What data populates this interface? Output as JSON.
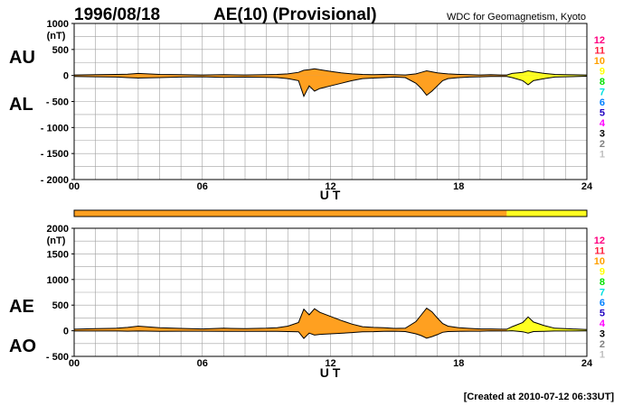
{
  "header": {
    "date": "1996/08/18",
    "title": "AE(10) (Provisional)",
    "source": "WDC for Geomagnetism, Kyoto"
  },
  "footer": {
    "created": "[Created at 2010-07-12 06:33UT]"
  },
  "colors": {
    "fill_main": "#ffa020",
    "fill_late": "#ffff20",
    "grid": "#a0a0a0",
    "stations": [
      "#c0c0c0",
      "#808080",
      "#000000",
      "#ff00ff",
      "#2000c0",
      "#0080ff",
      "#00e0e0",
      "#00e000",
      "#ffff00",
      "#ffa000",
      "#ff2040",
      "#ff0080"
    ]
  },
  "color_scale": {
    "labels": [
      "12",
      "11",
      "10",
      "9",
      "8",
      "7",
      "6",
      "5",
      "4",
      "3",
      "2",
      "1"
    ]
  },
  "status_bar": {
    "segments": [
      {
        "from": 0,
        "to": 20.25,
        "color": "#ffa020"
      },
      {
        "from": 20.25,
        "to": 24,
        "color": "#ffff20"
      }
    ]
  },
  "chart_data": [
    {
      "type": "area",
      "name": "AU/AL",
      "labels": {
        "upper": "AU",
        "lower": "AL"
      },
      "unit": "(nT)",
      "xlabel": "U T",
      "xlim": [
        0,
        24
      ],
      "ylim": [
        -2000,
        1000
      ],
      "yticks": [
        1000,
        500,
        0,
        -500,
        -1000,
        -1500,
        -2000
      ],
      "ytick_labels": [
        "1000",
        "500",
        "0",
        "- 500",
        "- 1000",
        "- 1500",
        "- 2000"
      ],
      "xtick_labels": [
        "00",
        "06",
        "12",
        "18",
        "24"
      ],
      "x": [
        0,
        1,
        2,
        2.5,
        3,
        4,
        5,
        6,
        7,
        8,
        9,
        9.5,
        10,
        10.5,
        10.75,
        11,
        11.25,
        11.5,
        12,
        12.5,
        13,
        13.5,
        14,
        14.5,
        15,
        15.5,
        16,
        16.25,
        16.5,
        16.75,
        17,
        17.25,
        17.5,
        18,
        18.5,
        19,
        19.5,
        20,
        20.25,
        20.5,
        21,
        21.25,
        21.5,
        22,
        22.5,
        23,
        24
      ],
      "series": [
        {
          "values": [
            10,
            15,
            20,
            25,
            40,
            20,
            15,
            10,
            15,
            10,
            15,
            20,
            30,
            60,
            100,
            110,
            130,
            110,
            80,
            50,
            30,
            20,
            15,
            20,
            15,
            10,
            30,
            60,
            90,
            70,
            50,
            40,
            30,
            20,
            15,
            10,
            15,
            10,
            10,
            40,
            60,
            90,
            70,
            40,
            20,
            15,
            10
          ]
        },
        {
          "values": [
            -20,
            -25,
            -30,
            -40,
            -50,
            -40,
            -30,
            -25,
            -35,
            -30,
            -35,
            -40,
            -60,
            -100,
            -400,
            -200,
            -300,
            -250,
            -200,
            -150,
            -100,
            -60,
            -50,
            -40,
            -30,
            -40,
            -150,
            -250,
            -380,
            -300,
            -200,
            -100,
            -60,
            -40,
            -30,
            -25,
            -20,
            -20,
            -20,
            -40,
            -100,
            -180,
            -100,
            -60,
            -30,
            -25,
            -15
          ]
        }
      ]
    },
    {
      "type": "area",
      "name": "AE/AO",
      "labels": {
        "upper": "AE",
        "lower": "AO"
      },
      "unit": "(nT)",
      "xlabel": "U T",
      "xlim": [
        0,
        24
      ],
      "ylim": [
        -500,
        2000
      ],
      "yticks": [
        2000,
        1500,
        1000,
        500,
        0,
        -500
      ],
      "ytick_labels": [
        "2000",
        "1500",
        "1000",
        "500",
        "0",
        "- 500"
      ],
      "xtick_labels": [
        "00",
        "06",
        "12",
        "18",
        "24"
      ],
      "x": [
        0,
        1,
        2,
        2.5,
        3,
        4,
        5,
        6,
        7,
        8,
        9,
        9.5,
        10,
        10.5,
        10.75,
        11,
        11.25,
        11.5,
        12,
        12.5,
        13,
        13.5,
        14,
        14.5,
        15,
        15.5,
        16,
        16.25,
        16.5,
        16.75,
        17,
        17.25,
        17.5,
        18,
        18.5,
        19,
        19.5,
        20,
        20.25,
        20.5,
        21,
        21.25,
        21.5,
        22,
        22.5,
        23,
        24
      ],
      "series": [
        {
          "values": [
            30,
            40,
            50,
            65,
            90,
            60,
            45,
            35,
            50,
            40,
            50,
            60,
            90,
            160,
            420,
            310,
            430,
            360,
            280,
            200,
            130,
            80,
            65,
            60,
            45,
            50,
            180,
            310,
            440,
            370,
            250,
            140,
            90,
            60,
            45,
            35,
            35,
            30,
            30,
            80,
            160,
            270,
            170,
            100,
            50,
            40,
            25
          ]
        },
        {
          "values": [
            -5,
            -5,
            -5,
            -8,
            -5,
            -10,
            -8,
            -8,
            -10,
            -10,
            -10,
            -10,
            -15,
            -20,
            -150,
            -45,
            -85,
            -70,
            -60,
            -50,
            -35,
            -20,
            -18,
            -10,
            -8,
            -15,
            -60,
            -95,
            -145,
            -115,
            -75,
            -30,
            -15,
            -10,
            -8,
            -8,
            -3,
            -5,
            -5,
            0,
            -20,
            -45,
            -15,
            -10,
            -5,
            -5,
            -3
          ]
        }
      ]
    }
  ]
}
